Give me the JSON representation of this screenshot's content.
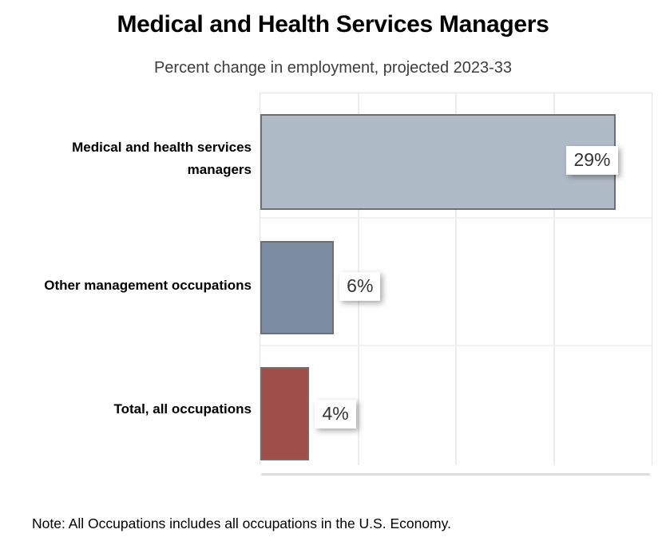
{
  "page": {
    "title": "Medical and Health Services Managers",
    "subtitle": "Percent change in employment, projected 2023-33",
    "note": "Note: All Occupations includes all occupations in the U.S. Economy."
  },
  "chart_data": {
    "type": "bar",
    "orientation": "horizontal",
    "title": "Medical and Health Services Managers",
    "subtitle": "Percent change in employment, projected 2023-33",
    "categories": [
      "Medical and health services managers",
      "Other management occupations",
      "Total, all occupations"
    ],
    "values": [
      29,
      6,
      4
    ],
    "value_labels": [
      "29%",
      "6%",
      "4%"
    ],
    "bar_colors": [
      "#b0bbc8",
      "#7b8ca0",
      "#9e4f48"
    ],
    "bar_border_color": "#6e6f72",
    "xlabel": "",
    "ylabel": "",
    "xlim": [
      0,
      31.9
    ],
    "gridlines": "vertical, 4 equal intervals, light gray",
    "legend": "none",
    "value_label_style": "white box with drop shadow, dark gray text",
    "note": "Note: All Occupations includes all occupations in the U.S. Economy."
  }
}
